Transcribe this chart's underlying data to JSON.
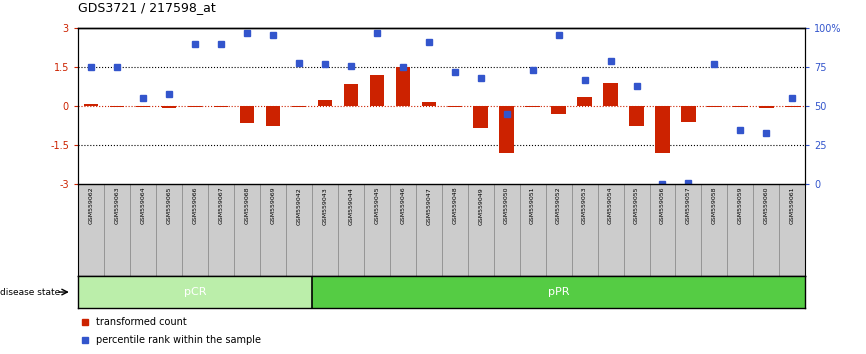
{
  "title": "GDS3721 / 217598_at",
  "samples": [
    "GSM559062",
    "GSM559063",
    "GSM559064",
    "GSM559065",
    "GSM559066",
    "GSM559067",
    "GSM559068",
    "GSM559069",
    "GSM559042",
    "GSM559043",
    "GSM559044",
    "GSM559045",
    "GSM559046",
    "GSM559047",
    "GSM559048",
    "GSM559049",
    "GSM559050",
    "GSM559051",
    "GSM559052",
    "GSM559053",
    "GSM559054",
    "GSM559055",
    "GSM559056",
    "GSM559057",
    "GSM559058",
    "GSM559059",
    "GSM559060",
    "GSM559061"
  ],
  "transformed_count": [
    0.08,
    -0.05,
    -0.05,
    -0.08,
    -0.05,
    -0.05,
    -0.65,
    -0.75,
    -0.05,
    0.22,
    0.85,
    1.2,
    1.5,
    0.18,
    -0.05,
    -0.85,
    -1.8,
    -0.05,
    -0.3,
    0.35,
    0.9,
    -0.75,
    -1.8,
    -0.6,
    -0.05,
    -0.05,
    -0.08,
    -0.05
  ],
  "percentile_pct": [
    75,
    75,
    55,
    58,
    90,
    90,
    97,
    96,
    78,
    77,
    76,
    97,
    75,
    91,
    72,
    68,
    45,
    73,
    96,
    67,
    79,
    63,
    0,
    1,
    77,
    35,
    33,
    55
  ],
  "pCR_count": 9,
  "pPR_count": 19,
  "ylim": [
    -3,
    3
  ],
  "dotted_lines_red": [
    1.5,
    -1.5
  ],
  "bar_color": "#CC2200",
  "dot_color": "#3355CC",
  "pCR_color": "#BBEEAA",
  "pPR_color": "#55CC44",
  "label_bg": "#CCCCCC",
  "disease_state_label": "disease state",
  "pCR_label": "pCR",
  "pPR_label": "pPR",
  "legend_bar": "transformed count",
  "legend_dot": "percentile rank within the sample"
}
